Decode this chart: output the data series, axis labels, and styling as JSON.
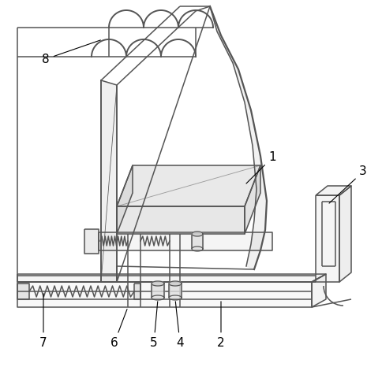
{
  "bg_color": "#ffffff",
  "line_color": "#555555",
  "line_width": 1.1,
  "label_color": "#000000",
  "fig_w": 4.84,
  "fig_h": 4.66,
  "dpi": 100
}
